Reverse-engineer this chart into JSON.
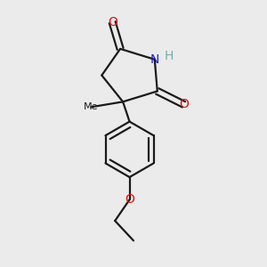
{
  "background_color": "#ebebeb",
  "bond_color": "#1a1a1a",
  "bond_width": 1.6,
  "atoms": {
    "N": {
      "symbol": "N",
      "color": "#2020cc",
      "fontsize": 10
    },
    "H": {
      "symbol": "H",
      "color": "#7aabab",
      "fontsize": 10
    },
    "O1": {
      "symbol": "O",
      "color": "#dd1111",
      "fontsize": 10
    },
    "O2": {
      "symbol": "O",
      "color": "#dd1111",
      "fontsize": 10
    },
    "O3": {
      "symbol": "O",
      "color": "#dd1111",
      "fontsize": 10
    },
    "Me": {
      "symbol": "Me",
      "color": "#1a1a1a",
      "fontsize": 8
    }
  },
  "fig_width": 3.0,
  "fig_height": 3.0,
  "dpi": 100,
  "xlim": [
    0,
    10
  ],
  "ylim": [
    0,
    10
  ]
}
